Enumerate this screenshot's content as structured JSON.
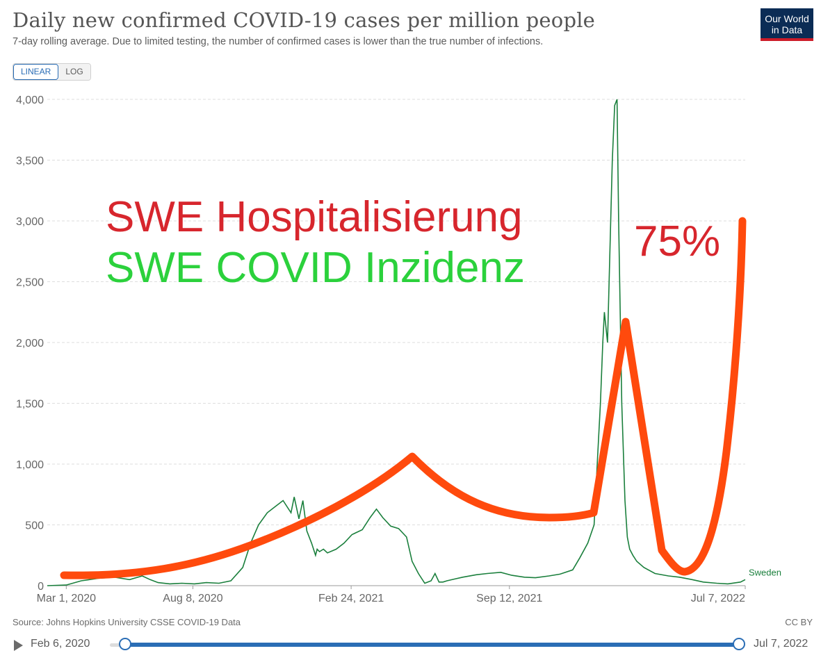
{
  "header": {
    "title": "Daily new confirmed COVID-19 cases per million people",
    "subtitle": "7-day rolling average. Due to limited testing, the number of confirmed cases is lower than the true number of infections.",
    "logo_line1": "Our World",
    "logo_line2": "in Data"
  },
  "scale_toggle": {
    "linear": "LINEAR",
    "log": "LOG",
    "selected": "LINEAR"
  },
  "footer": {
    "source": "Source: Johns Hopkins University CSSE COVID-19 Data",
    "license": "CC BY"
  },
  "timeline": {
    "start_label": "Feb 6, 2020",
    "end_label": "Jul 7, 2022"
  },
  "colors": {
    "series": "#1a7f3c",
    "overlay_line": "#ff4a0d",
    "overlay_red": "#d7262d",
    "overlay_green": "#2bd13c",
    "accent": "#2a6db5"
  },
  "overlay": {
    "label_red": "SWE Hospitalisierung",
    "label_green": "SWE COVID Inzidenz",
    "percent": "75%"
  },
  "chart_data": {
    "type": "line",
    "title": "Daily new confirmed COVID-19 cases per million people",
    "ylim": [
      0,
      4000
    ],
    "yticks": [
      0,
      500,
      1000,
      1500,
      2000,
      2500,
      3000,
      3500,
      4000
    ],
    "ytick_labels": [
      "0",
      "500",
      "1,000",
      "1,500",
      "2,000",
      "2,500",
      "3,000",
      "3,500",
      "4,000"
    ],
    "xlim": [
      "2020-02-06",
      "2022-07-07"
    ],
    "xticks": [
      "2020-03-01",
      "2020-08-08",
      "2021-02-24",
      "2021-09-12",
      "2022-07-07"
    ],
    "xtick_labels": [
      "Mar 1, 2020",
      "Aug 8, 2020",
      "Feb 24, 2021",
      "Sep 12, 2021",
      "Jul 7, 2022"
    ],
    "grid": true,
    "series": [
      {
        "name": "Sweden",
        "x": [
          "2020-02-06",
          "2020-03-01",
          "2020-03-20",
          "2020-04-10",
          "2020-05-01",
          "2020-05-20",
          "2020-06-05",
          "2020-06-15",
          "2020-06-25",
          "2020-07-10",
          "2020-07-25",
          "2020-08-10",
          "2020-08-25",
          "2020-09-10",
          "2020-09-25",
          "2020-10-10",
          "2020-10-20",
          "2020-10-30",
          "2020-11-10",
          "2020-11-20",
          "2020-11-30",
          "2020-12-10",
          "2020-12-14",
          "2020-12-20",
          "2020-12-25",
          "2020-12-30",
          "2021-01-05",
          "2021-01-10",
          "2021-01-12",
          "2021-01-15",
          "2021-01-20",
          "2021-01-25",
          "2021-02-05",
          "2021-02-15",
          "2021-02-25",
          "2021-03-10",
          "2021-03-20",
          "2021-03-28",
          "2021-04-05",
          "2021-04-15",
          "2021-04-25",
          "2021-05-05",
          "2021-05-12",
          "2021-05-20",
          "2021-05-28",
          "2021-06-05",
          "2021-06-10",
          "2021-06-15",
          "2021-06-20",
          "2021-06-25",
          "2021-07-05",
          "2021-07-15",
          "2021-08-01",
          "2021-08-15",
          "2021-09-01",
          "2021-09-15",
          "2021-10-01",
          "2021-10-15",
          "2021-11-01",
          "2021-11-15",
          "2021-12-01",
          "2021-12-10",
          "2021-12-20",
          "2021-12-28",
          "2022-01-01",
          "2022-01-05",
          "2022-01-08",
          "2022-01-10",
          "2022-01-14",
          "2022-01-18",
          "2022-01-20",
          "2022-01-23",
          "2022-01-26",
          "2022-01-28",
          "2022-02-01",
          "2022-02-05",
          "2022-02-08",
          "2022-02-11",
          "2022-02-15",
          "2022-02-20",
          "2022-03-01",
          "2022-03-15",
          "2022-04-01",
          "2022-04-15",
          "2022-05-01",
          "2022-05-15",
          "2022-06-01",
          "2022-06-15",
          "2022-07-01",
          "2022-07-07"
        ],
        "y": [
          0,
          5,
          40,
          60,
          70,
          50,
          80,
          50,
          25,
          15,
          20,
          15,
          25,
          20,
          40,
          150,
          350,
          500,
          600,
          650,
          700,
          600,
          730,
          550,
          700,
          450,
          350,
          250,
          300,
          280,
          300,
          270,
          300,
          350,
          420,
          460,
          560,
          630,
          560,
          490,
          470,
          400,
          200,
          100,
          20,
          40,
          100,
          30,
          30,
          40,
          55,
          70,
          90,
          100,
          110,
          85,
          70,
          65,
          80,
          95,
          130,
          230,
          350,
          500,
          1000,
          1500,
          2000,
          2250,
          2000,
          3000,
          3500,
          3950,
          4000,
          3000,
          1500,
          700,
          400,
          300,
          250,
          200,
          150,
          100,
          80,
          70,
          50,
          30,
          20,
          15,
          30,
          50
        ]
      }
    ],
    "annotations": [
      "Sweden"
    ]
  }
}
